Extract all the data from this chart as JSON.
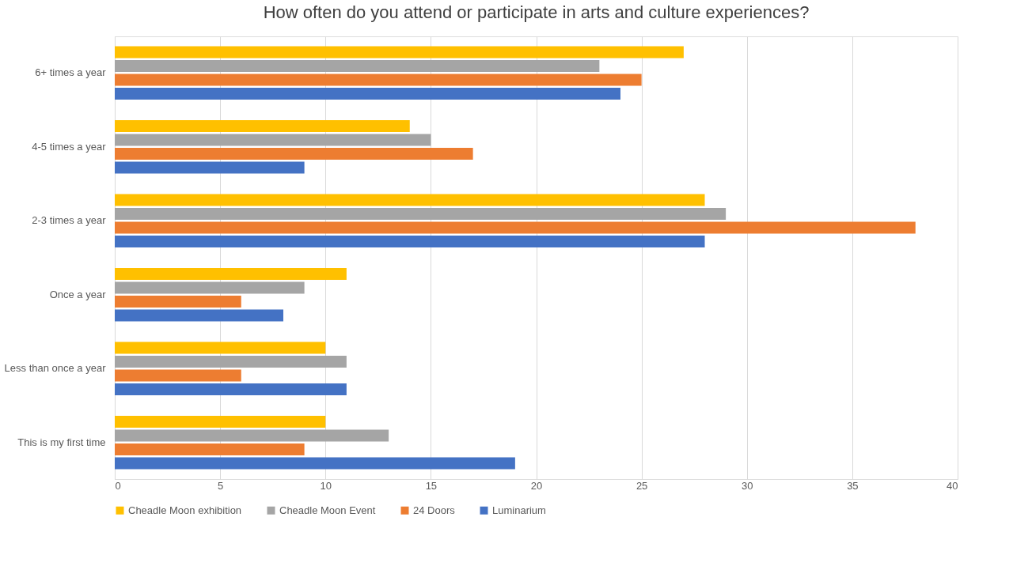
{
  "chart_data": {
    "type": "bar",
    "orientation": "horizontal",
    "title": "How often do you attend or participate in arts and culture experiences?",
    "categories": [
      "6+ times a year",
      "4-5 times a year",
      "2-3 times a year",
      "Once a year",
      "Less than once a year",
      "This is my first time"
    ],
    "series": [
      {
        "name": "Cheadle Moon exhibition",
        "color": "#ffc000",
        "values": [
          27,
          14,
          28,
          11,
          10,
          10
        ]
      },
      {
        "name": "Cheadle Moon Event",
        "color": "#a5a5a5",
        "values": [
          23,
          15,
          29,
          9,
          11,
          13
        ]
      },
      {
        "name": "24 Doors",
        "color": "#ed7d31",
        "values": [
          25,
          17,
          38,
          6,
          6,
          9
        ]
      },
      {
        "name": "Luminarium",
        "color": "#4472c4",
        "values": [
          24,
          9,
          28,
          8,
          11,
          19
        ]
      }
    ],
    "xlim": [
      0,
      40
    ],
    "xticks": [
      0,
      5,
      10,
      15,
      20,
      25,
      30,
      35,
      40
    ],
    "grid": "x",
    "legend": "bottom"
  }
}
